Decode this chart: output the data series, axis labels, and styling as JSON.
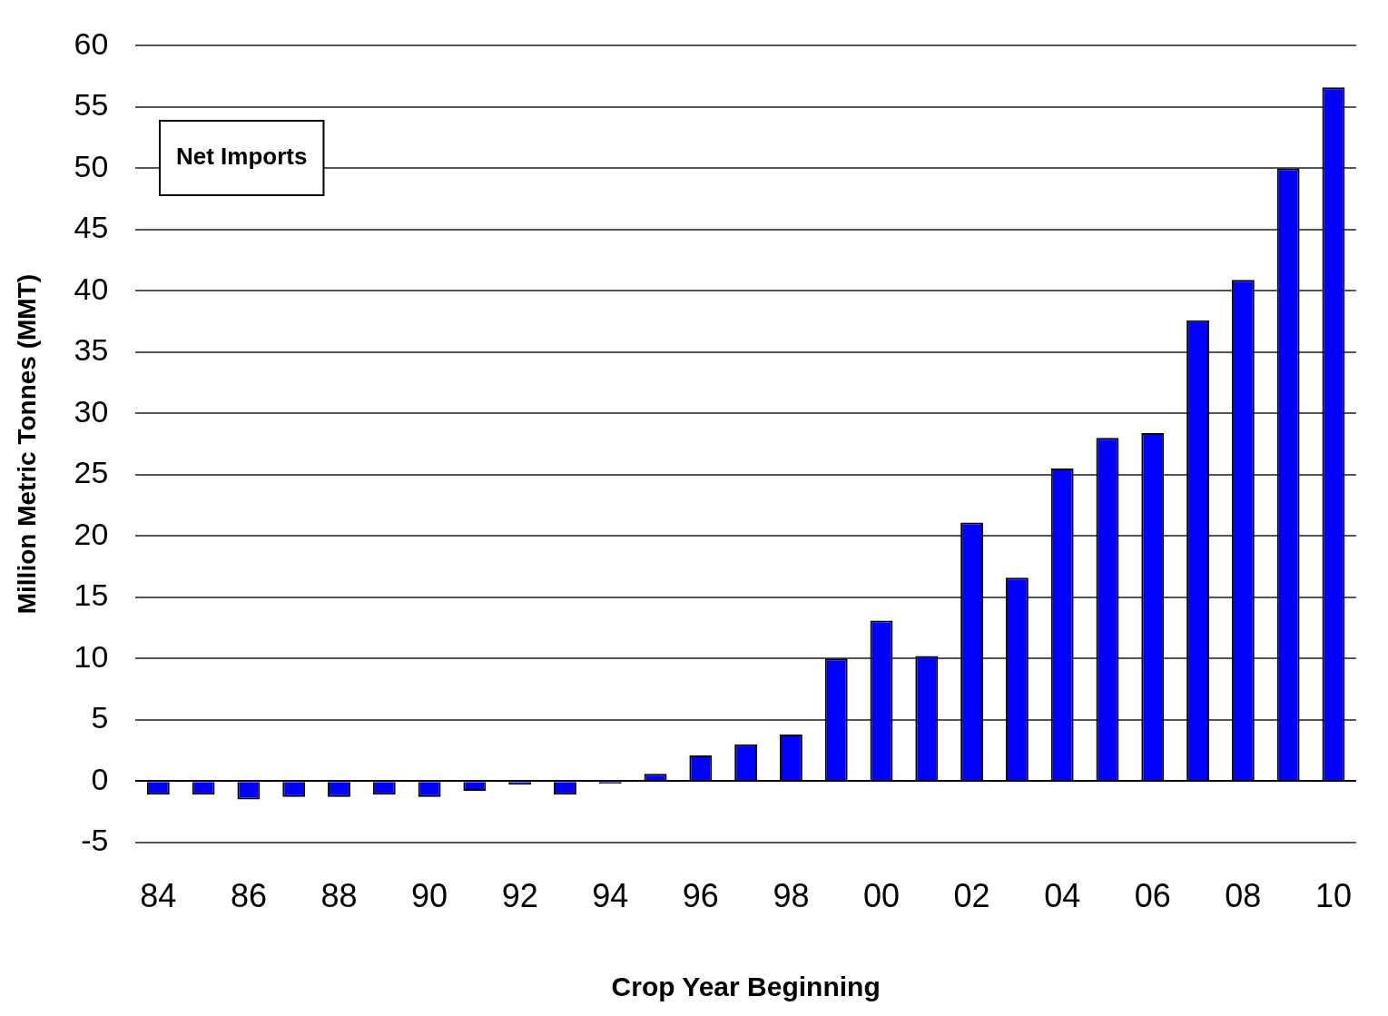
{
  "chart_data": {
    "type": "bar",
    "xlabel": "Crop Year Beginning",
    "ylabel": "Million Metric Tonnes (MMT)",
    "categories": [
      "84",
      null,
      "86",
      null,
      "88",
      null,
      "90",
      null,
      "92",
      null,
      "94",
      null,
      "96",
      null,
      "98",
      null,
      "00",
      null,
      "02",
      null,
      "04",
      null,
      "06",
      null,
      "08",
      null,
      "10"
    ],
    "values": [
      -1.1,
      -1.1,
      -1.5,
      -1.3,
      -1.3,
      -1.1,
      -1.3,
      -0.8,
      -0.3,
      -1.1,
      -0.2,
      0.6,
      2.1,
      3.0,
      3.8,
      10,
      13.1,
      10.2,
      21.1,
      16.6,
      25.5,
      28.0,
      28.4,
      37.6,
      40.9,
      50,
      56.6
    ],
    "color": "#0000ff",
    "ylim": [
      -5,
      60
    ],
    "yticks": [
      -5,
      0,
      5,
      10,
      15,
      20,
      25,
      30,
      35,
      40,
      45,
      50,
      55,
      60
    ],
    "grid": "y",
    "legend": false,
    "annotations": [
      "Net Imports"
    ]
  }
}
